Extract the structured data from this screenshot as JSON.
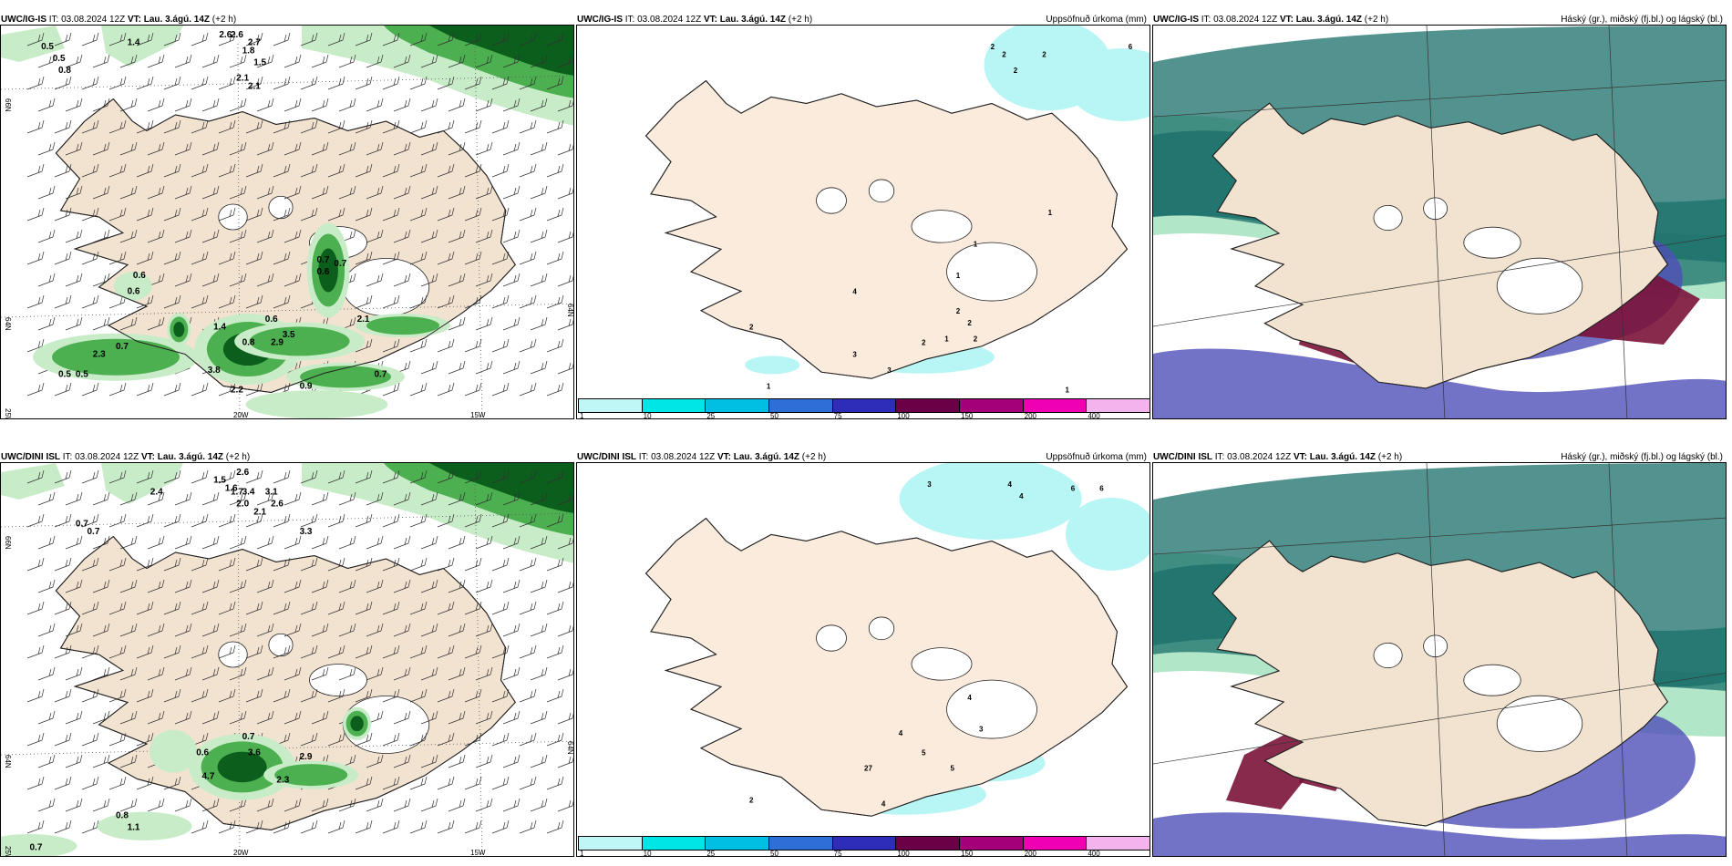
{
  "rows": [
    {
      "model": "UWC/IG-IS",
      "it_label": "IT:",
      "it_value": "03.08.2024 12Z",
      "vt_label": "VT:",
      "vt_value": "Lau. 3.ágú. 14Z",
      "lead": "(+2 h)",
      "precip_values": [
        {
          "text": "0.5"
        },
        {
          "text": "0.5"
        },
        {
          "text": "0.8"
        },
        {
          "text": "1.4"
        },
        {
          "text": "2.6"
        },
        {
          "text": "2.6"
        },
        {
          "text": "2.7"
        },
        {
          "text": "1.8"
        },
        {
          "text": "1.5"
        },
        {
          "text": "2.1"
        },
        {
          "text": "2.1"
        },
        {
          "text": "0.6"
        },
        {
          "text": "0.6"
        },
        {
          "text": "0.7"
        },
        {
          "text": "0.6"
        },
        {
          "text": "0.7"
        },
        {
          "text": "2.3"
        },
        {
          "text": "0.8"
        },
        {
          "text": "0.5"
        },
        {
          "text": "0.5"
        },
        {
          "text": "3.8"
        },
        {
          "text": "2.2"
        },
        {
          "text": "2.9"
        },
        {
          "text": "3.5"
        },
        {
          "text": "2.1"
        },
        {
          "text": "0.9"
        },
        {
          "text": "0.7"
        },
        {
          "text": "1.4"
        },
        {
          "text": "0.7"
        },
        {
          "text": "0.6"
        }
      ],
      "accum_values": [
        {
          "text": "2"
        },
        {
          "text": "2"
        },
        {
          "text": "2"
        },
        {
          "text": "2"
        },
        {
          "text": "6"
        },
        {
          "text": "1"
        },
        {
          "text": "1"
        },
        {
          "text": "1"
        },
        {
          "text": "2"
        },
        {
          "text": "2"
        },
        {
          "text": "2"
        },
        {
          "text": "1"
        },
        {
          "text": "2"
        },
        {
          "text": "2"
        },
        {
          "text": "3"
        },
        {
          "text": "3"
        },
        {
          "text": "1"
        },
        {
          "text": "1"
        },
        {
          "text": "4"
        }
      ],
      "lon_labels": [
        "20W",
        "15W"
      ],
      "lat_labels": [
        "66N",
        "64N",
        "25W",
        "64N"
      ]
    },
    {
      "model": "UWC/DINI ISL",
      "it_label": "IT:",
      "it_value": "03.08.2024 12Z",
      "vt_label": "VT:",
      "vt_value": "Lau. 3.ágú. 14Z",
      "lead": "(+2 h)",
      "precip_values": [
        {
          "text": "2.4"
        },
        {
          "text": "1.5"
        },
        {
          "text": "1.6"
        },
        {
          "text": "1.7"
        },
        {
          "text": "2.6"
        },
        {
          "text": "3.4"
        },
        {
          "text": "2.0"
        },
        {
          "text": "3.1"
        },
        {
          "text": "2.1"
        },
        {
          "text": "2.6"
        },
        {
          "text": "3.3"
        },
        {
          "text": "0.7"
        },
        {
          "text": "0.7"
        },
        {
          "text": "0.7"
        },
        {
          "text": "0.6"
        },
        {
          "text": "4.7"
        },
        {
          "text": "3.6"
        },
        {
          "text": "2.3"
        },
        {
          "text": "2.9"
        },
        {
          "text": "0.8"
        },
        {
          "text": "1.1"
        },
        {
          "text": "0.7"
        }
      ],
      "accum_values": [
        {
          "text": "3"
        },
        {
          "text": "4"
        },
        {
          "text": "6"
        },
        {
          "text": "6"
        },
        {
          "text": "4"
        },
        {
          "text": "27"
        },
        {
          "text": "4"
        },
        {
          "text": "5"
        },
        {
          "text": "5"
        },
        {
          "text": "4"
        },
        {
          "text": "3"
        },
        {
          "text": "2"
        },
        {
          "text": "4"
        }
      ],
      "lon_labels": [
        "20W",
        "15W"
      ],
      "lat_labels": [
        "66N",
        "64N",
        "25W",
        "64N"
      ]
    }
  ],
  "panel_titles": {
    "precip": "Uppsöfnuð úrkoma (mm)",
    "clouds": "Háský (gr.), miðský (fj.bl.) og lágský (bl.)"
  },
  "colorbar": {
    "ticks": [
      "1",
      "10",
      "25",
      "50",
      "75",
      "100",
      "150",
      "200",
      "400"
    ],
    "colors": [
      "#bff7f7",
      "#00e5e5",
      "#00bfe0",
      "#2d6fd6",
      "#2d2dba",
      "#6b0047",
      "#a3007a",
      "#f000b4",
      "#f5b3ee"
    ]
  },
  "colors": {
    "land": "#f2e2d0",
    "land_alt": "#fbebdd",
    "glacier": "#ffffff",
    "accum": "#b8f5f5",
    "precip_light": "#c8ecc8",
    "precip_mid": "#4caf50",
    "precip_dark": "#0b5e1b",
    "cloud_high": "#1a6f6a",
    "cloud_mid": "#4f4fb8",
    "cloud_low": "#7a1338"
  }
}
